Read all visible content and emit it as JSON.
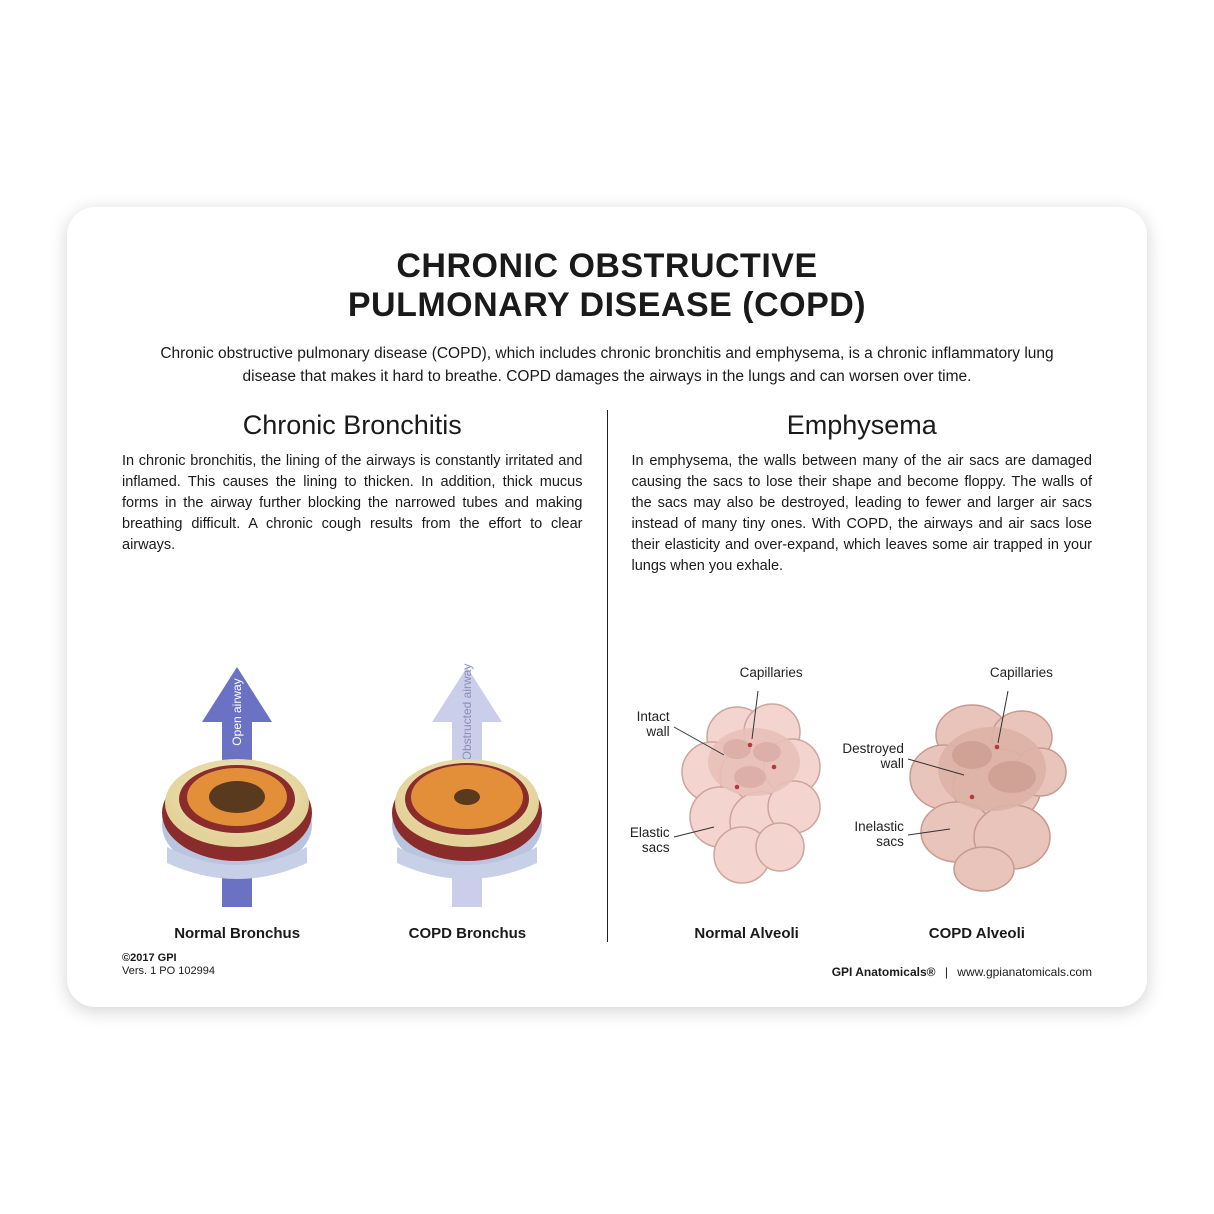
{
  "title_line1": "CHRONIC OBSTRUCTIVE",
  "title_line2": "PULMONARY DISEASE (COPD)",
  "intro": "Chronic obstructive pulmonary disease (COPD), which includes chronic bronchitis and emphysema, is a chronic inflammatory lung disease that makes it hard to breathe. COPD damages the airways in the lungs and can worsen over time.",
  "left": {
    "heading": "Chronic Bronchitis",
    "body": "In chronic bronchitis, the lining of the airways is constantly irritated and inflamed. This causes the lining to thicken. In addition, thick mucus forms in the airway further blocking the narrowed tubes and making breathing difficult. A chronic cough results from the effort to clear airways.",
    "fig1": {
      "caption": "Normal Bronchus",
      "arrow_label": "Open airway",
      "arrow_color": "#6b72c4",
      "arrow_opacity": 1.0,
      "lumen_r": 28,
      "colors": {
        "mucosa": "#e38f3a",
        "muscle": "#8a2c2c",
        "cartilage": "#b9c4de",
        "fat": "#efe2b8"
      }
    },
    "fig2": {
      "caption": "COPD Bronchus",
      "arrow_label": "Obstructed airway",
      "arrow_color": "#6b72c4",
      "arrow_opacity": 0.35,
      "lumen_r": 13,
      "colors": {
        "mucosa": "#e38f3a",
        "muscle": "#8a2c2c",
        "cartilage": "#b9c4de",
        "fat": "#efe2b8"
      }
    }
  },
  "right": {
    "heading": "Emphysema",
    "body": "In emphysema, the walls between many of the air sacs are damaged causing the sacs to lose their shape and become floppy. The walls of the sacs may also be destroyed, leading to fewer and larger air sacs instead of many tiny ones. With COPD, the airways and air sacs lose their elasticity and over-expand, which leaves some air trapped in your lungs when you exhale.",
    "fig1": {
      "caption": "Normal Alveoli",
      "labels": {
        "top": "Capillaries",
        "upper": "Intact\nwall",
        "lower": "Elastic\nsacs"
      },
      "fill": "#f3d4cf",
      "stroke": "#cfa49c",
      "cap": "#b53a3a"
    },
    "fig2": {
      "caption": "COPD Alveoli",
      "labels": {
        "top": "Capillaries",
        "upper": "Destroyed\nwall",
        "lower": "Inelastic\nsacs"
      },
      "fill": "#e9c4ba",
      "stroke": "#c79a8f",
      "cap": "#b53a3a"
    }
  },
  "footer": {
    "copyright": "©2017 GPI",
    "version": "Vers. 1 PO 102994",
    "brand": "GPI Anatomicals®",
    "url": "www.gpianatomicals.com"
  },
  "style": {
    "title_fontsize": 34,
    "intro_fontsize": 15.5,
    "subhead_fontsize": 27,
    "body_fontsize": 14.5,
    "caption_fontsize": 15,
    "annotation_fontsize": 13.5,
    "footer_fontsize": 11,
    "card_radius": 28,
    "card_bg": "#ffffff",
    "divider_color": "#222222",
    "text_color": "#1a1a1a"
  }
}
